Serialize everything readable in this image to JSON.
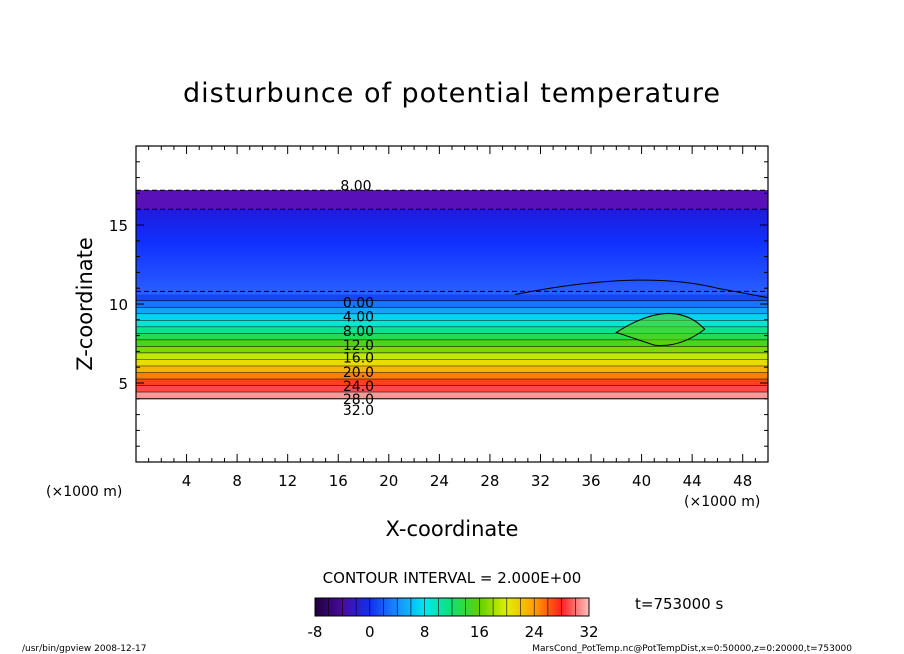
{
  "chart_data": {
    "type": "heatmap",
    "title": "disturbunce of potential temperature",
    "xlabel": "X-coordinate",
    "ylabel": "Z-coordinate",
    "x_unit_left": "(×1000 m)",
    "x_unit_right": "(×1000 m)",
    "xlim": [
      0,
      50
    ],
    "ylim": [
      0,
      20
    ],
    "x_ticks": [
      4,
      8,
      12,
      16,
      20,
      24,
      28,
      32,
      36,
      40,
      44,
      48
    ],
    "y_ticks": [
      5,
      10,
      15
    ],
    "contour_interval_label": "CONTOUR INTERVAL = 2.000E+00",
    "time_label": "t=753000 s",
    "colorbar": {
      "min": -8,
      "max": 32,
      "tick_labels": [
        "-8",
        "0",
        "8",
        "16",
        "24",
        "32"
      ]
    },
    "contour_labels": [
      "8.00",
      "0.00",
      "4.00",
      "8.00",
      "12.0",
      "16.0",
      "20.0",
      "24.0",
      "28.0",
      "32.0"
    ],
    "layers": [
      {
        "z_bottom": 17.2,
        "z_top": 20.0,
        "value": null
      },
      {
        "z_bottom": 10.6,
        "z_top": 17.2,
        "value": -6
      },
      {
        "z_bottom": 4.0,
        "z_top": 10.6,
        "value_bottom": 32,
        "value_top": 0
      },
      {
        "z_bottom": 0.0,
        "z_top": 4.0,
        "value": null
      }
    ]
  },
  "footer": {
    "left": "/usr/bin/gpview   2008-12-17",
    "right": "MarsCond_PotTemp.nc@PotTempDist,x=0:50000,z=0:20000,t=753000"
  }
}
